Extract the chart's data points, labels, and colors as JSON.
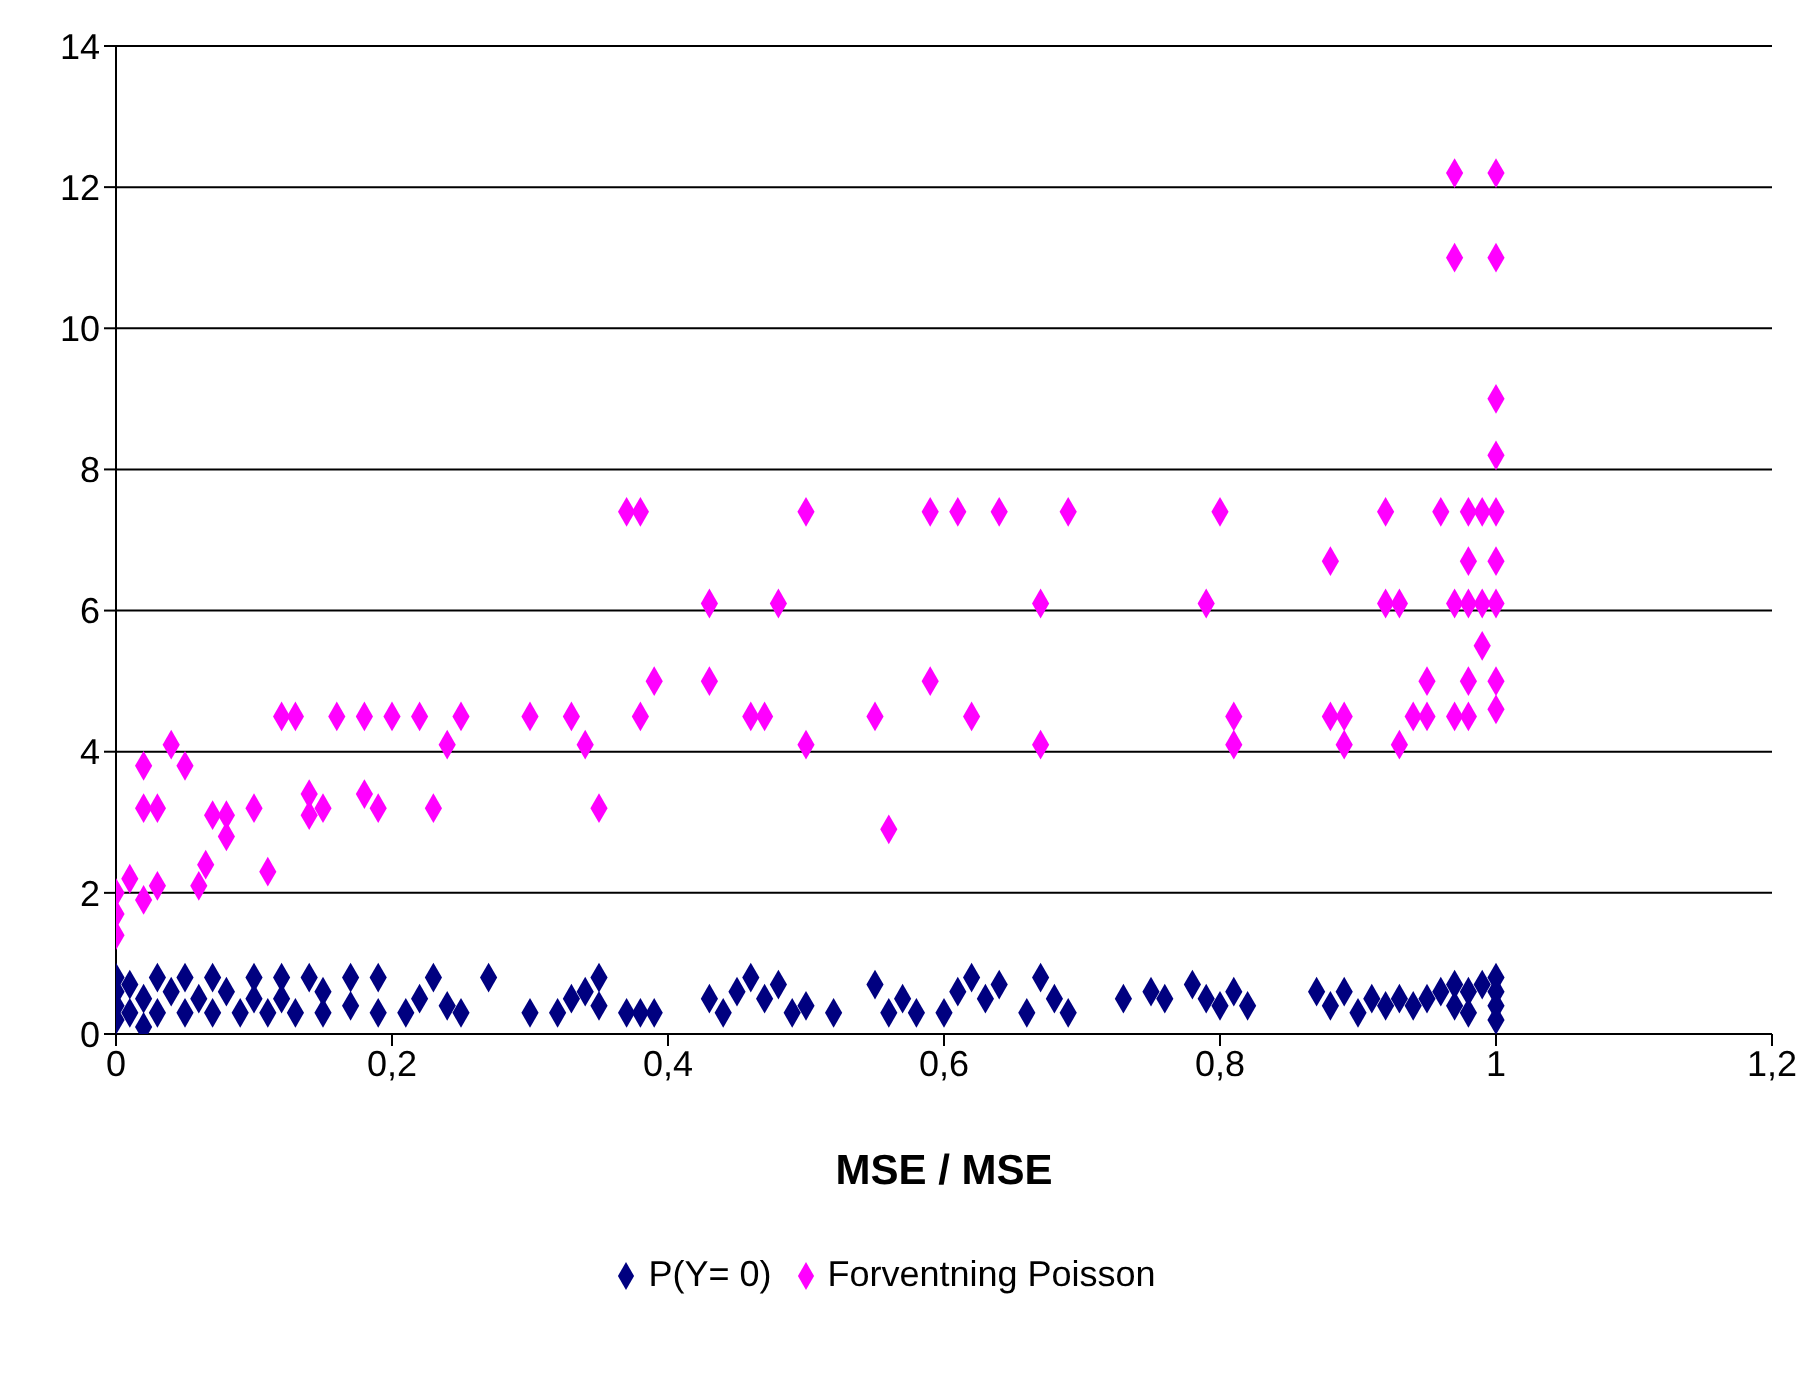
{
  "chart_data": {
    "type": "scatter",
    "xlabel": "MSE / MSE",
    "xlim": [
      0,
      1.2
    ],
    "xticks": [
      0,
      {
        "value": 0.2,
        "label": "0,2"
      },
      {
        "value": 0.4,
        "label": "0,4"
      },
      {
        "value": 0.6,
        "label": "0,6"
      },
      {
        "value": 0.8,
        "label": "0,8"
      },
      1,
      {
        "value": 1.2,
        "label": "1,2"
      }
    ],
    "ylim": [
      0,
      14
    ],
    "yticks": [
      0,
      2,
      4,
      6,
      8,
      10,
      12,
      14
    ],
    "grid": "y",
    "legend": "bottom",
    "marker": "diamond",
    "series": [
      {
        "name": "P(Y= 0)",
        "color": "#000080",
        "x": [
          0,
          0,
          0,
          0,
          0.01,
          0.01,
          0.02,
          0.02,
          0.03,
          0.03,
          0.04,
          0.05,
          0.05,
          0.06,
          0.07,
          0.07,
          0.08,
          0.09,
          0.1,
          0.1,
          0.11,
          0.12,
          0.12,
          0.13,
          0.14,
          0.15,
          0.15,
          0.17,
          0.17,
          0.19,
          0.19,
          0.21,
          0.22,
          0.23,
          0.24,
          0.25,
          0.27,
          0.3,
          0.32,
          0.33,
          0.34,
          0.35,
          0.35,
          0.37,
          0.38,
          0.39,
          0.43,
          0.44,
          0.45,
          0.46,
          0.47,
          0.48,
          0.49,
          0.5,
          0.52,
          0.55,
          0.56,
          0.57,
          0.58,
          0.6,
          0.61,
          0.62,
          0.63,
          0.64,
          0.66,
          0.67,
          0.68,
          0.69,
          0.73,
          0.75,
          0.76,
          0.78,
          0.79,
          0.8,
          0.81,
          0.82,
          0.87,
          0.88,
          0.89,
          0.9,
          0.91,
          0.92,
          0.93,
          0.94,
          0.95,
          0.96,
          0.97,
          0.97,
          0.98,
          0.98,
          0.99,
          1,
          1,
          1,
          1
        ],
        "values": [
          0.2,
          0.4,
          0.6,
          0.8,
          0.3,
          0.7,
          0.5,
          0.1,
          0.8,
          0.3,
          0.6,
          0.3,
          0.8,
          0.5,
          0.3,
          0.8,
          0.6,
          0.3,
          0.8,
          0.5,
          0.3,
          0.8,
          0.5,
          0.3,
          0.8,
          0.6,
          0.3,
          0.8,
          0.4,
          0.3,
          0.8,
          0.3,
          0.5,
          0.8,
          0.4,
          0.3,
          0.8,
          0.3,
          0.3,
          0.5,
          0.6,
          0.8,
          0.4,
          0.3,
          0.3,
          0.3,
          0.5,
          0.3,
          0.6,
          0.8,
          0.5,
          0.7,
          0.3,
          0.4,
          0.3,
          0.7,
          0.3,
          0.5,
          0.3,
          0.3,
          0.6,
          0.8,
          0.5,
          0.7,
          0.3,
          0.8,
          0.5,
          0.3,
          0.5,
          0.6,
          0.5,
          0.7,
          0.5,
          0.4,
          0.6,
          0.4,
          0.6,
          0.4,
          0.6,
          0.3,
          0.5,
          0.4,
          0.5,
          0.4,
          0.5,
          0.6,
          0.7,
          0.4,
          0.6,
          0.3,
          0.7,
          0.8,
          0.6,
          0.4,
          0.2
        ]
      },
      {
        "name": "Forventning Poisson",
        "color": "#ff00ff",
        "x": [
          0,
          0,
          0,
          0.01,
          0.02,
          0.03,
          0.02,
          0.03,
          0.02,
          0.04,
          0.05,
          0.06,
          0.065,
          0.07,
          0.08,
          0.08,
          0.1,
          0.11,
          0.12,
          0.13,
          0.14,
          0.14,
          0.15,
          0.16,
          0.18,
          0.18,
          0.19,
          0.2,
          0.22,
          0.23,
          0.24,
          0.25,
          0.3,
          0.33,
          0.34,
          0.35,
          0.37,
          0.38,
          0.38,
          0.39,
          0.43,
          0.43,
          0.46,
          0.47,
          0.48,
          0.5,
          0.5,
          0.55,
          0.56,
          0.59,
          0.59,
          0.61,
          0.62,
          0.64,
          0.67,
          0.67,
          0.69,
          0.79,
          0.8,
          0.81,
          0.81,
          0.88,
          0.88,
          0.89,
          0.89,
          0.92,
          0.92,
          0.93,
          0.93,
          0.94,
          0.95,
          0.95,
          0.96,
          0.97,
          0.97,
          0.97,
          0.97,
          0.98,
          0.98,
          0.98,
          0.98,
          0.98,
          0.99,
          0.99,
          1,
          1,
          1,
          1,
          1,
          0.99,
          1,
          1,
          1,
          1
        ],
        "values": [
          1.4,
          1.7,
          2,
          2.2,
          1.9,
          2.1,
          3.2,
          3.2,
          3.8,
          4.1,
          3.8,
          2.1,
          2.4,
          3.1,
          2.8,
          3.1,
          3.2,
          2.3,
          4.5,
          4.5,
          3.4,
          3.1,
          3.2,
          4.5,
          4.5,
          3.4,
          3.2,
          4.5,
          4.5,
          3.2,
          4.1,
          4.5,
          4.5,
          4.5,
          4.1,
          3.2,
          7.4,
          7.4,
          4.5,
          5,
          6.1,
          5,
          4.5,
          4.5,
          6.1,
          7.4,
          4.1,
          4.5,
          2.9,
          7.4,
          5,
          7.4,
          4.5,
          7.4,
          6.1,
          4.1,
          7.4,
          6.1,
          7.4,
          4.5,
          4.1,
          6.7,
          4.5,
          4.5,
          4.1,
          7.4,
          6.1,
          6.1,
          4.1,
          4.5,
          5,
          4.5,
          7.4,
          12.2,
          11,
          6.1,
          4.5,
          7.4,
          6.7,
          6.1,
          5,
          4.5,
          5.5,
          6.1,
          12.2,
          11,
          9,
          8.2,
          7.4,
          7.4,
          6.7,
          6.1,
          5,
          4.6
        ]
      }
    ]
  }
}
